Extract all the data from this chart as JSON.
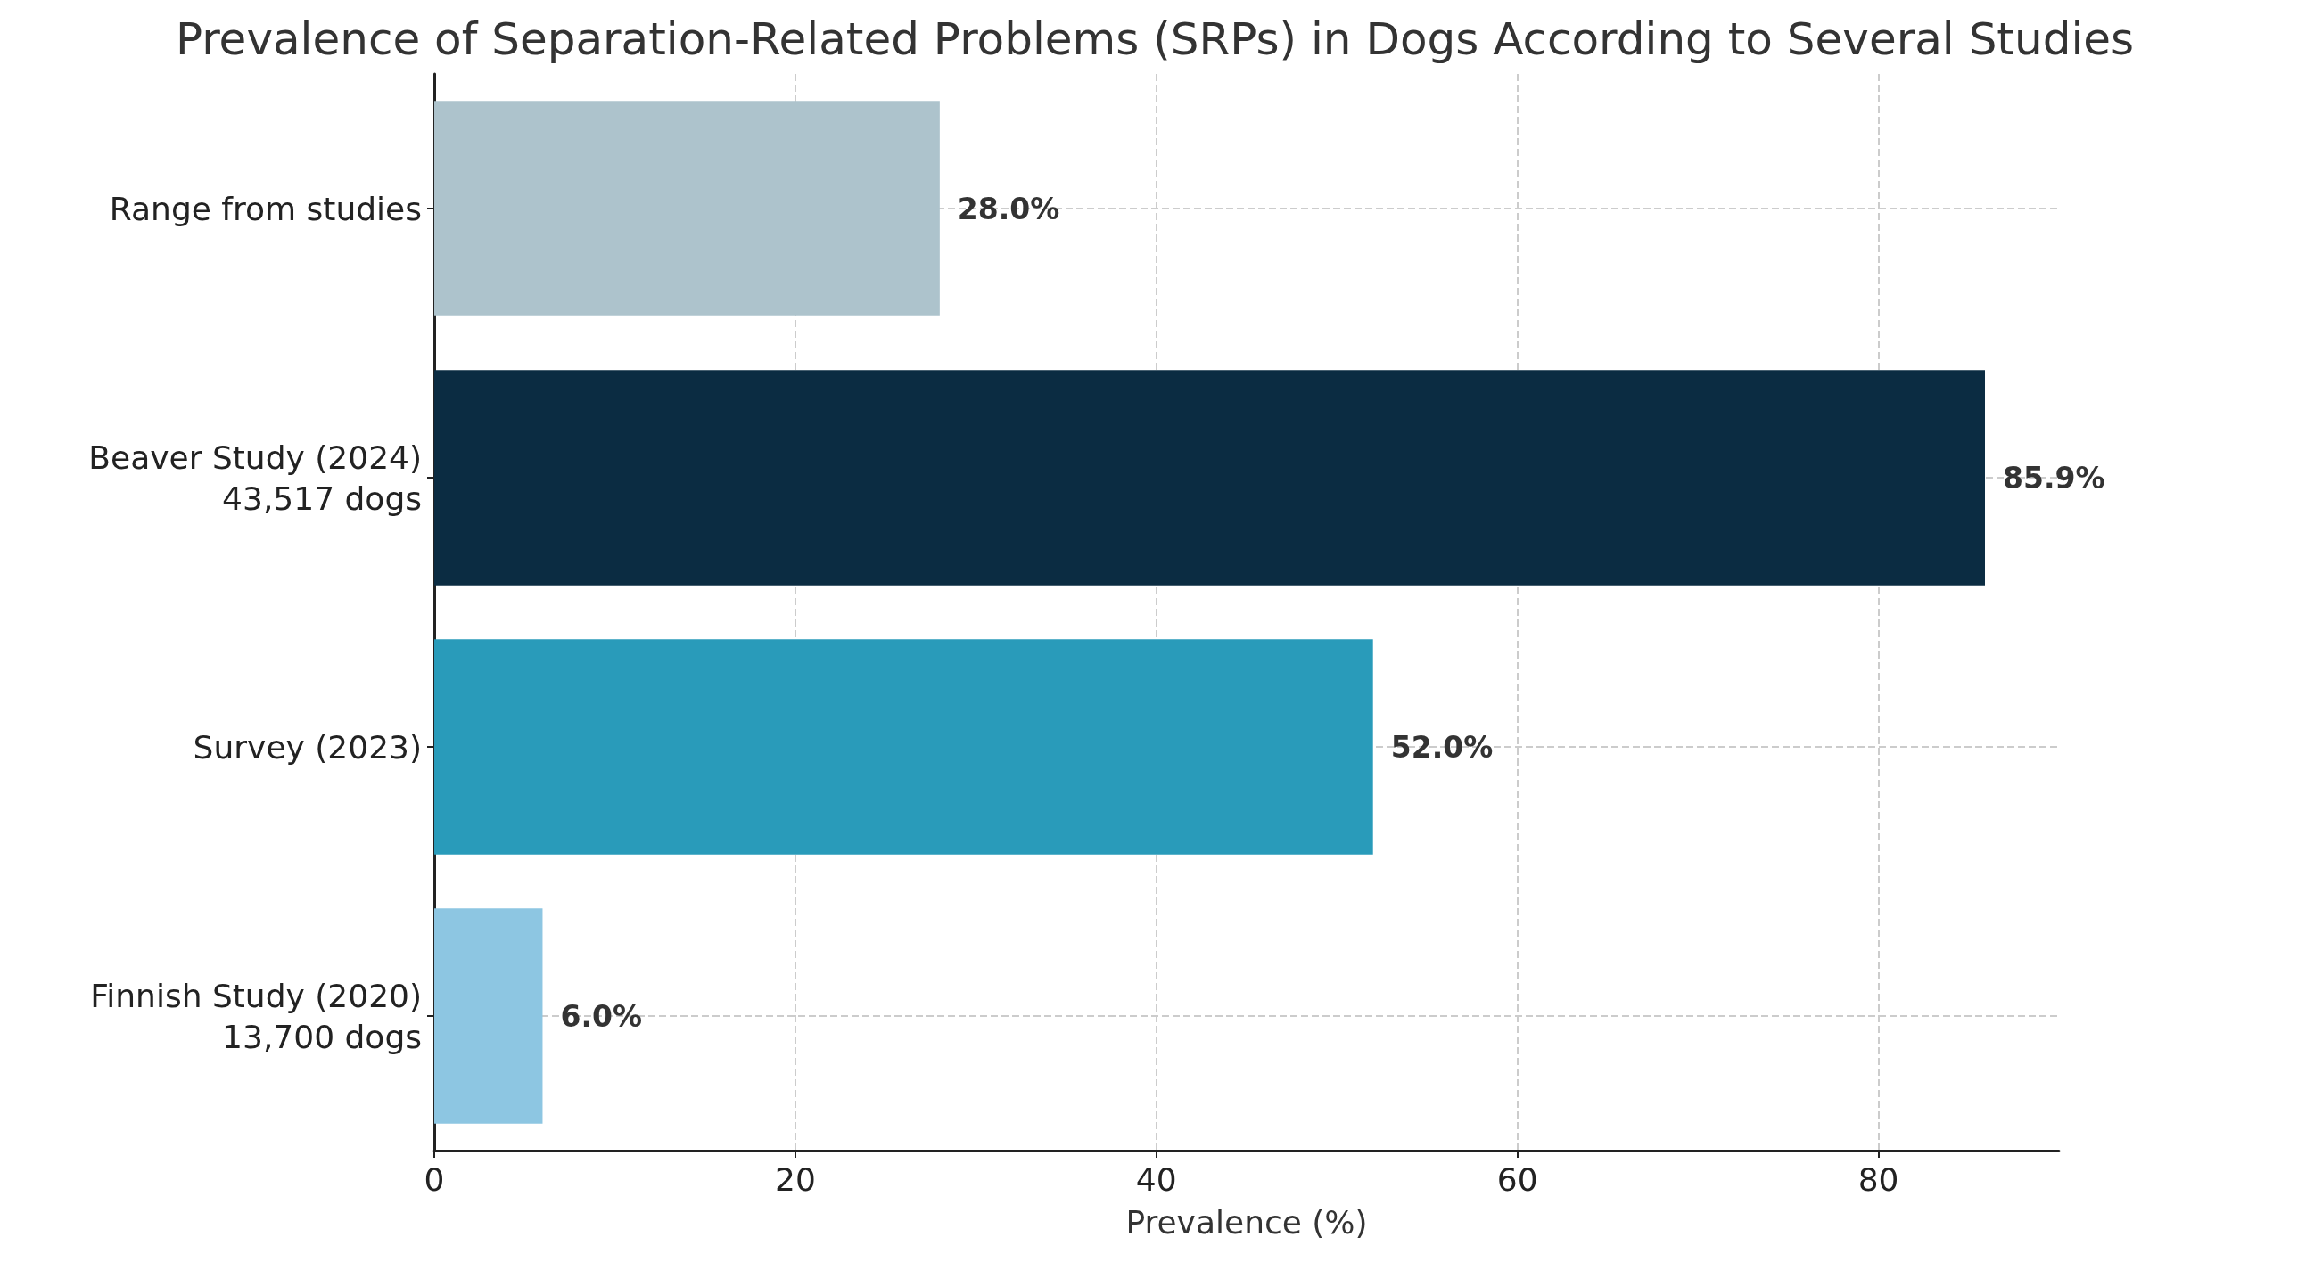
{
  "chart_data": {
    "type": "bar",
    "orientation": "horizontal",
    "title": "Prevalence of Separation-Related Problems (SRPs) in Dogs According to Several Studies",
    "xlabel": "Prevalence (%)",
    "categories": [
      "Range from studies",
      "Beaver Study (2024)\n43,517 dogs",
      "Survey (2023)",
      "Finnish Study (2020)\n13,700 dogs"
    ],
    "values": [
      28.0,
      85.9,
      52.0,
      6.0
    ],
    "colors": [
      "#adc3cc",
      "#0b2c42",
      "#299bba",
      "#8dc6e2"
    ],
    "value_labels": [
      "28.0%",
      "85.9%",
      "52.0%",
      "6.0%"
    ],
    "xlim": [
      0,
      90
    ],
    "xticks": [
      0,
      20,
      40,
      60,
      80
    ],
    "grid": true
  }
}
